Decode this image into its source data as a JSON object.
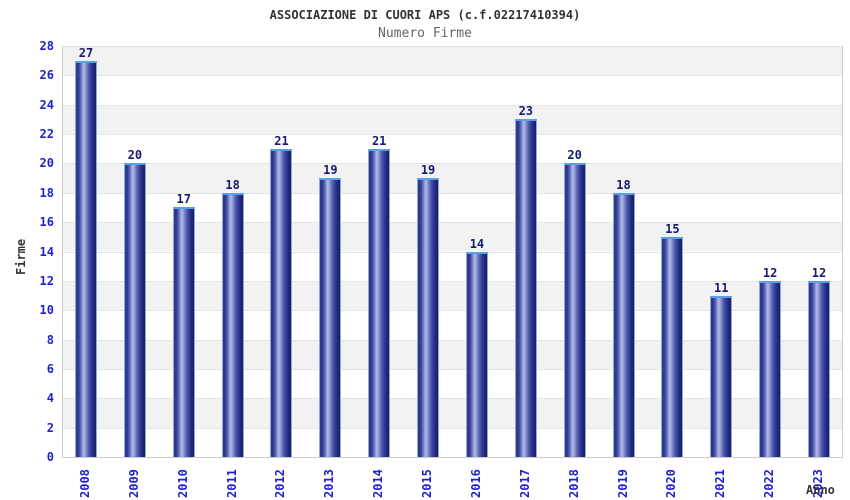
{
  "header": {
    "title": "ASSOCIAZIONE DI CUORI APS (c.f.02217410394)",
    "subtitle": "Numero Firme"
  },
  "chart_data": {
    "type": "bar",
    "title": "ASSOCIAZIONE DI CUORI APS (c.f.02217410394)",
    "subtitle": "Numero Firme",
    "categories": [
      "2008",
      "2009",
      "2010",
      "2011",
      "2012",
      "2013",
      "2014",
      "2015",
      "2016",
      "2017",
      "2018",
      "2019",
      "2020",
      "2021",
      "2022",
      "2023"
    ],
    "values": [
      27,
      20,
      17,
      18,
      21,
      19,
      21,
      19,
      14,
      23,
      20,
      18,
      15,
      11,
      12,
      12
    ],
    "xlabel": "Anno",
    "ylabel": "Firme",
    "ylim": [
      0,
      28
    ],
    "ytick_step": 2,
    "grid": "alternating-horizontal-bands",
    "legend": "none",
    "colors": {
      "bar_dark": "#1b2269",
      "bar_highlight": "#b2bae9",
      "bar_border": "#8fa8e0",
      "bar_cap": "#55a0e8",
      "tick_label": "#2222cc",
      "value_label": "#151a70",
      "axis_text": "#333333",
      "subtitle_text": "#666666",
      "band_gray": "#f2f2f2",
      "band_white": "#ffffff",
      "frame": "#cccccc"
    }
  }
}
